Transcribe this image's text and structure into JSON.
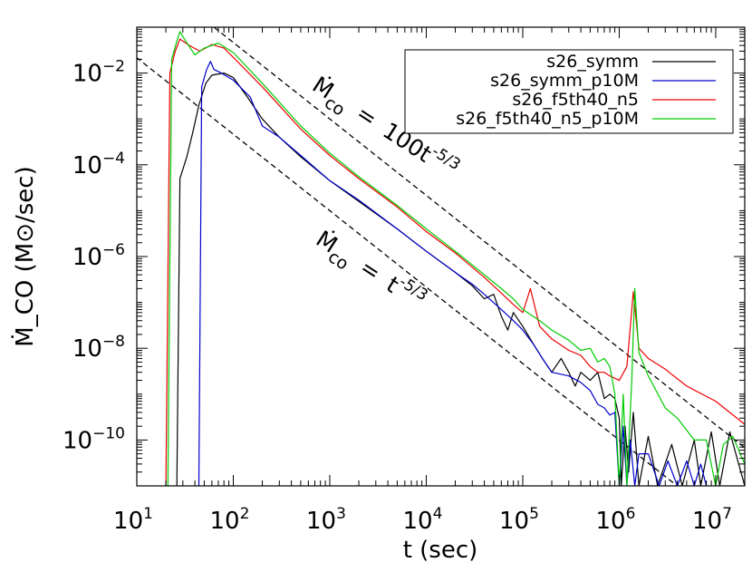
{
  "chart_data": {
    "type": "line",
    "title": "",
    "xlabel": "t (sec)",
    "ylabel": "Ṁ_CO (M⊙/sec)",
    "xscale": "log",
    "yscale": "log",
    "xlim": [
      10,
      20000000
    ],
    "ylim": [
      1e-11,
      0.1
    ],
    "x_ticks": [
      {
        "base": "10",
        "exp": "1",
        "value": 10
      },
      {
        "base": "10",
        "exp": "2",
        "value": 100
      },
      {
        "base": "10",
        "exp": "3",
        "value": 1000
      },
      {
        "base": "10",
        "exp": "4",
        "value": 10000
      },
      {
        "base": "10",
        "exp": "5",
        "value": 100000
      },
      {
        "base": "10",
        "exp": "6",
        "value": 1000000
      },
      {
        "base": "10",
        "exp": "7",
        "value": 10000000
      }
    ],
    "y_ticks": [
      {
        "base": "10",
        "exp": "−2",
        "value": 0.01
      },
      {
        "base": "10",
        "exp": "−4",
        "value": 0.0001
      },
      {
        "base": "10",
        "exp": "−6",
        "value": 1e-06
      },
      {
        "base": "10",
        "exp": "−8",
        "value": 1e-08
      },
      {
        "base": "10",
        "exp": "−10",
        "value": 1e-10
      }
    ],
    "legend_position": "top-right",
    "reference_lines": [
      {
        "name": "100 t^-5/3",
        "coef": 100,
        "slope": -1.6667,
        "style": "dashed",
        "color": "#000000"
      },
      {
        "name": "t^-5/3",
        "coef": 1,
        "slope": -1.6667,
        "style": "dashed",
        "color": "#000000"
      }
    ],
    "annotations": [
      {
        "lhs": "Ṁ",
        "sub": "co",
        "eq": "=",
        "rhs": "100t",
        "exp": "-5/3"
      },
      {
        "lhs": "Ṁ",
        "sub": "co",
        "eq": "=",
        "rhs": "t",
        "exp": "-5/3"
      }
    ],
    "series": [
      {
        "name": "s26_symm",
        "color": "#000000",
        "points": [
          [
            26,
            1e-11
          ],
          [
            28,
            5e-05
          ],
          [
            33,
            0.00015
          ],
          [
            38,
            0.0005
          ],
          [
            44,
            0.002
          ],
          [
            52,
            0.006
          ],
          [
            60,
            0.009
          ],
          [
            80,
            0.01
          ],
          [
            100,
            0.008
          ],
          [
            140,
            0.003
          ],
          [
            200,
            0.001
          ],
          [
            300,
            0.0004
          ],
          [
            500,
            0.00015
          ],
          [
            1000,
            4.5e-05
          ],
          [
            2000,
            1.6e-05
          ],
          [
            5000,
            4e-06
          ],
          [
            10000,
            1.3e-06
          ],
          [
            20000,
            4.5e-07
          ],
          [
            30000,
            2.3e-07
          ],
          [
            40000,
            1.2e-07
          ],
          [
            50000,
            1.5e-07
          ],
          [
            60000,
            5e-08
          ],
          [
            70000,
            2.5e-08
          ],
          [
            80000,
            6e-08
          ],
          [
            100000,
            3e-08
          ],
          [
            130000,
            1.2e-08
          ],
          [
            160000,
            6e-09
          ],
          [
            200000,
            3e-09
          ],
          [
            250000,
            6e-09
          ],
          [
            300000,
            3e-09
          ],
          [
            350000,
            1.5e-09
          ],
          [
            400000,
            3e-09
          ],
          [
            500000,
            2e-09
          ],
          [
            600000,
            3e-09
          ],
          [
            700000,
            8e-10
          ],
          [
            800000,
            1e-09
          ],
          [
            900000,
            8e-10
          ],
          [
            1000000,
            3e-10
          ],
          [
            1050000,
            1e-11
          ],
          [
            1150000,
            2e-10
          ],
          [
            1250000,
            2e-11
          ],
          [
            1400000,
            4e-10
          ],
          [
            1600000,
            1e-11
          ],
          [
            2000000,
            1.2e-10
          ],
          [
            2500000,
            1e-11
          ],
          [
            3500000,
            8e-11
          ],
          [
            4500000,
            1e-11
          ],
          [
            6000000,
            1e-10
          ],
          [
            7000000,
            1e-11
          ],
          [
            9000000,
            1.5e-10
          ],
          [
            11000000,
            1e-11
          ],
          [
            14000000,
            1.5e-10
          ],
          [
            20000000,
            1e-11
          ]
        ]
      },
      {
        "name": "s26_symm_p10M",
        "color": "#0000cc",
        "points": [
          [
            44,
            1e-11
          ],
          [
            47,
            0.005
          ],
          [
            53,
            0.012
          ],
          [
            58,
            0.018
          ],
          [
            63,
            0.012
          ],
          [
            75,
            0.01
          ],
          [
            100,
            0.007
          ],
          [
            150,
            0.003
          ],
          [
            200,
            0.0007
          ],
          [
            300,
            0.0004
          ],
          [
            500,
            0.00016
          ],
          [
            1000,
            4.5e-05
          ],
          [
            2000,
            1.7e-05
          ],
          [
            5000,
            4e-06
          ],
          [
            10000,
            1.3e-06
          ],
          [
            20000,
            4.5e-07
          ],
          [
            30000,
            2.5e-07
          ],
          [
            40000,
            1.5e-07
          ],
          [
            60000,
            7e-08
          ],
          [
            80000,
            4e-08
          ],
          [
            100000,
            2.5e-08
          ],
          [
            130000,
            1.2e-08
          ],
          [
            160000,
            6e-09
          ],
          [
            200000,
            3e-09
          ],
          [
            300000,
            2.5e-09
          ],
          [
            400000,
            1.8e-09
          ],
          [
            500000,
            1.2e-09
          ],
          [
            600000,
            6e-10
          ],
          [
            700000,
            5e-10
          ],
          [
            800000,
            3.5e-10
          ],
          [
            900000,
            4e-10
          ],
          [
            1000000,
            1e-11
          ],
          [
            1100000,
            2e-10
          ],
          [
            1200000,
            1e-11
          ],
          [
            1300000,
            1e-10
          ],
          [
            1450000,
            1e-11
          ],
          [
            1600000,
            5e-11
          ],
          [
            2000000,
            5e-11
          ],
          [
            2600000,
            1e-11
          ],
          [
            3200000,
            3.5e-11
          ],
          [
            4000000,
            1e-11
          ],
          [
            5000000,
            3.5e-11
          ],
          [
            6000000,
            1e-11
          ],
          [
            7000000,
            3e-11
          ],
          [
            8000000,
            1e-11
          ]
        ]
      },
      {
        "name": "s26_f5th40_n5",
        "color": "#ee0000",
        "points": [
          [
            20,
            1e-11
          ],
          [
            22,
            0.01
          ],
          [
            25,
            0.03
          ],
          [
            28,
            0.055
          ],
          [
            35,
            0.04
          ],
          [
            45,
            0.03
          ],
          [
            60,
            0.042
          ],
          [
            80,
            0.035
          ],
          [
            100,
            0.022
          ],
          [
            200,
            0.005
          ],
          [
            500,
            0.0006
          ],
          [
            1000,
            0.00016
          ],
          [
            2000,
            5e-05
          ],
          [
            5000,
            1.2e-05
          ],
          [
            10000,
            3.5e-06
          ],
          [
            20000,
            1.2e-06
          ],
          [
            40000,
            3.5e-07
          ],
          [
            60000,
            1.6e-07
          ],
          [
            80000,
            9e-08
          ],
          [
            100000,
            6e-08
          ],
          [
            120000,
            2e-07
          ],
          [
            150000,
            3e-08
          ],
          [
            200000,
            1.6e-08
          ],
          [
            300000,
            9e-09
          ],
          [
            400000,
            7e-09
          ],
          [
            500000,
            4e-09
          ],
          [
            600000,
            3e-09
          ],
          [
            700000,
            3e-09
          ],
          [
            800000,
            2.5e-09
          ],
          [
            1000000,
            2e-09
          ],
          [
            1200000,
            4e-09
          ],
          [
            1400000,
            1.7e-07
          ],
          [
            1600000,
            1e-08
          ],
          [
            2000000,
            6e-09
          ],
          [
            3000000,
            3.5e-09
          ],
          [
            5000000,
            1.5e-09
          ],
          [
            10000000,
            7e-10
          ],
          [
            20000000,
            2.2e-10
          ]
        ]
      },
      {
        "name": "s26_f5th40_n5_p10M",
        "color": "#00cc00",
        "points": [
          [
            21,
            1e-11
          ],
          [
            23,
            0.02
          ],
          [
            26,
            0.05
          ],
          [
            28,
            0.08
          ],
          [
            32,
            0.05
          ],
          [
            40,
            0.025
          ],
          [
            50,
            0.035
          ],
          [
            70,
            0.045
          ],
          [
            100,
            0.028
          ],
          [
            200,
            0.006
          ],
          [
            500,
            0.0007
          ],
          [
            1000,
            0.00018
          ],
          [
            2000,
            5.5e-05
          ],
          [
            5000,
            1.3e-05
          ],
          [
            10000,
            4e-06
          ],
          [
            20000,
            1.3e-06
          ],
          [
            40000,
            4e-07
          ],
          [
            60000,
            2e-07
          ],
          [
            80000,
            1.2e-07
          ],
          [
            100000,
            7e-08
          ],
          [
            150000,
            4e-08
          ],
          [
            200000,
            2.5e-08
          ],
          [
            300000,
            1.5e-08
          ],
          [
            400000,
            9e-09
          ],
          [
            500000,
            1e-08
          ],
          [
            600000,
            5e-09
          ],
          [
            700000,
            6e-09
          ],
          [
            800000,
            4e-09
          ],
          [
            900000,
            1e-09
          ],
          [
            1000000,
            1e-11
          ],
          [
            1100000,
            1e-09
          ],
          [
            1200000,
            1e-11
          ],
          [
            1350000,
            2e-09
          ],
          [
            1450000,
            2e-07
          ],
          [
            1600000,
            8e-09
          ],
          [
            2000000,
            2.5e-09
          ],
          [
            3000000,
            5e-10
          ],
          [
            4000000,
            3e-10
          ],
          [
            6000000,
            1e-10
          ],
          [
            8000000,
            1e-10
          ],
          [
            10000000,
            1e-11
          ],
          [
            12000000,
            8e-11
          ],
          [
            15000000,
            1.2e-10
          ],
          [
            20000000,
            3e-11
          ]
        ]
      }
    ]
  }
}
